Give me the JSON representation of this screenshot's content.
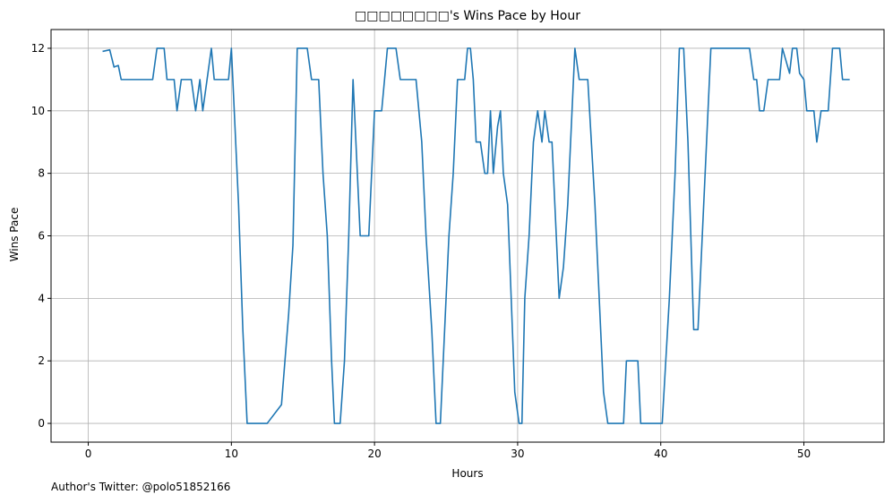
{
  "chart_data": {
    "type": "line",
    "title": "□□□□□□□□'s Wins Pace by Hour",
    "xlabel": "Hours",
    "ylabel": "Wins Pace",
    "xlim": [
      -2.6,
      55.6
    ],
    "ylim": [
      -0.6,
      12.6
    ],
    "xticks": [
      0,
      10,
      20,
      30,
      40,
      50
    ],
    "yticks": [
      0,
      2,
      4,
      6,
      8,
      10,
      12
    ],
    "grid": true,
    "series_color": "#1f77b4",
    "series": [
      {
        "points": [
          [
            1.0,
            11.9
          ],
          [
            1.5,
            11.95
          ],
          [
            1.8,
            11.4
          ],
          [
            2.1,
            11.45
          ],
          [
            2.3,
            11.0
          ],
          [
            4.5,
            11.0
          ],
          [
            4.8,
            12.0
          ],
          [
            5.3,
            12.0
          ],
          [
            5.5,
            11.0
          ],
          [
            6.0,
            11.0
          ],
          [
            6.2,
            10.0
          ],
          [
            6.5,
            11.0
          ],
          [
            7.2,
            11.0
          ],
          [
            7.5,
            10.0
          ],
          [
            7.8,
            11.0
          ],
          [
            8.0,
            10.0
          ],
          [
            8.3,
            11.0
          ],
          [
            8.6,
            12.0
          ],
          [
            8.8,
            11.0
          ],
          [
            9.8,
            11.0
          ],
          [
            10.0,
            12.0
          ],
          [
            10.5,
            7.0
          ],
          [
            10.8,
            3.0
          ],
          [
            11.1,
            0.0
          ],
          [
            12.5,
            0.0
          ],
          [
            13.5,
            0.6
          ],
          [
            14.0,
            3.5
          ],
          [
            14.3,
            5.7
          ],
          [
            14.6,
            12.0
          ],
          [
            15.3,
            12.0
          ],
          [
            15.6,
            11.0
          ],
          [
            16.1,
            11.0
          ],
          [
            16.4,
            8.0
          ],
          [
            16.7,
            6.0
          ],
          [
            17.0,
            2.0
          ],
          [
            17.2,
            0.0
          ],
          [
            17.6,
            0.0
          ],
          [
            17.9,
            2.0
          ],
          [
            18.2,
            6.0
          ],
          [
            18.5,
            11.0
          ],
          [
            18.8,
            8.0
          ],
          [
            19.0,
            6.0
          ],
          [
            19.6,
            6.0
          ],
          [
            20.0,
            10.0
          ],
          [
            20.5,
            10.0
          ],
          [
            20.9,
            12.0
          ],
          [
            21.5,
            12.0
          ],
          [
            21.8,
            11.0
          ],
          [
            22.9,
            11.0
          ],
          [
            23.3,
            9.0
          ],
          [
            23.6,
            6.0
          ],
          [
            24.0,
            3.0
          ],
          [
            24.3,
            0.0
          ],
          [
            24.6,
            0.0
          ],
          [
            24.9,
            3.0
          ],
          [
            25.2,
            6.0
          ],
          [
            25.5,
            8.0
          ],
          [
            25.8,
            11.0
          ],
          [
            26.3,
            11.0
          ],
          [
            26.5,
            12.0
          ],
          [
            26.7,
            12.0
          ],
          [
            26.9,
            11.0
          ],
          [
            27.1,
            9.0
          ],
          [
            27.4,
            9.0
          ],
          [
            27.7,
            8.0
          ],
          [
            27.9,
            8.0
          ],
          [
            28.1,
            10.0
          ],
          [
            28.3,
            8.0
          ],
          [
            28.6,
            9.5
          ],
          [
            28.8,
            10.0
          ],
          [
            29.0,
            8.0
          ],
          [
            29.3,
            7.0
          ],
          [
            29.8,
            1.0
          ],
          [
            30.1,
            0.0
          ],
          [
            30.3,
            0.0
          ],
          [
            30.5,
            4.0
          ],
          [
            30.8,
            6.0
          ],
          [
            31.1,
            9.0
          ],
          [
            31.4,
            10.0
          ],
          [
            31.7,
            9.0
          ],
          [
            31.9,
            10.0
          ],
          [
            32.2,
            9.0
          ],
          [
            32.4,
            9.0
          ],
          [
            32.7,
            6.0
          ],
          [
            32.9,
            4.0
          ],
          [
            33.2,
            5.0
          ],
          [
            33.5,
            7.0
          ],
          [
            33.8,
            10.0
          ],
          [
            34.0,
            12.0
          ],
          [
            34.3,
            11.0
          ],
          [
            34.9,
            11.0
          ],
          [
            35.4,
            7.0
          ],
          [
            35.7,
            4.0
          ],
          [
            36.0,
            1.0
          ],
          [
            36.3,
            0.0
          ],
          [
            37.4,
            0.0
          ],
          [
            37.6,
            2.0
          ],
          [
            38.4,
            2.0
          ],
          [
            38.6,
            0.0
          ],
          [
            40.1,
            0.0
          ],
          [
            40.6,
            4.0
          ],
          [
            41.0,
            8.0
          ],
          [
            41.3,
            12.0
          ],
          [
            41.6,
            12.0
          ],
          [
            41.9,
            9.0
          ],
          [
            42.3,
            3.0
          ],
          [
            42.6,
            3.0
          ],
          [
            42.9,
            6.0
          ],
          [
            43.2,
            9.0
          ],
          [
            43.5,
            12.0
          ],
          [
            46.2,
            12.0
          ],
          [
            46.5,
            11.0
          ],
          [
            46.7,
            11.0
          ],
          [
            46.9,
            10.0
          ],
          [
            47.2,
            10.0
          ],
          [
            47.5,
            11.0
          ],
          [
            48.3,
            11.0
          ],
          [
            48.5,
            12.0
          ],
          [
            49.0,
            11.2
          ],
          [
            49.2,
            12.0
          ],
          [
            49.5,
            12.0
          ],
          [
            49.7,
            11.2
          ],
          [
            50.0,
            11.0
          ],
          [
            50.2,
            10.0
          ],
          [
            50.7,
            10.0
          ],
          [
            50.9,
            9.0
          ],
          [
            51.2,
            10.0
          ],
          [
            51.7,
            10.0
          ],
          [
            52.0,
            12.0
          ],
          [
            52.5,
            12.0
          ],
          [
            52.7,
            11.0
          ],
          [
            53.2,
            11.0
          ]
        ]
      }
    ]
  },
  "footer": {
    "credit": "Author's Twitter: @polo51852166"
  }
}
